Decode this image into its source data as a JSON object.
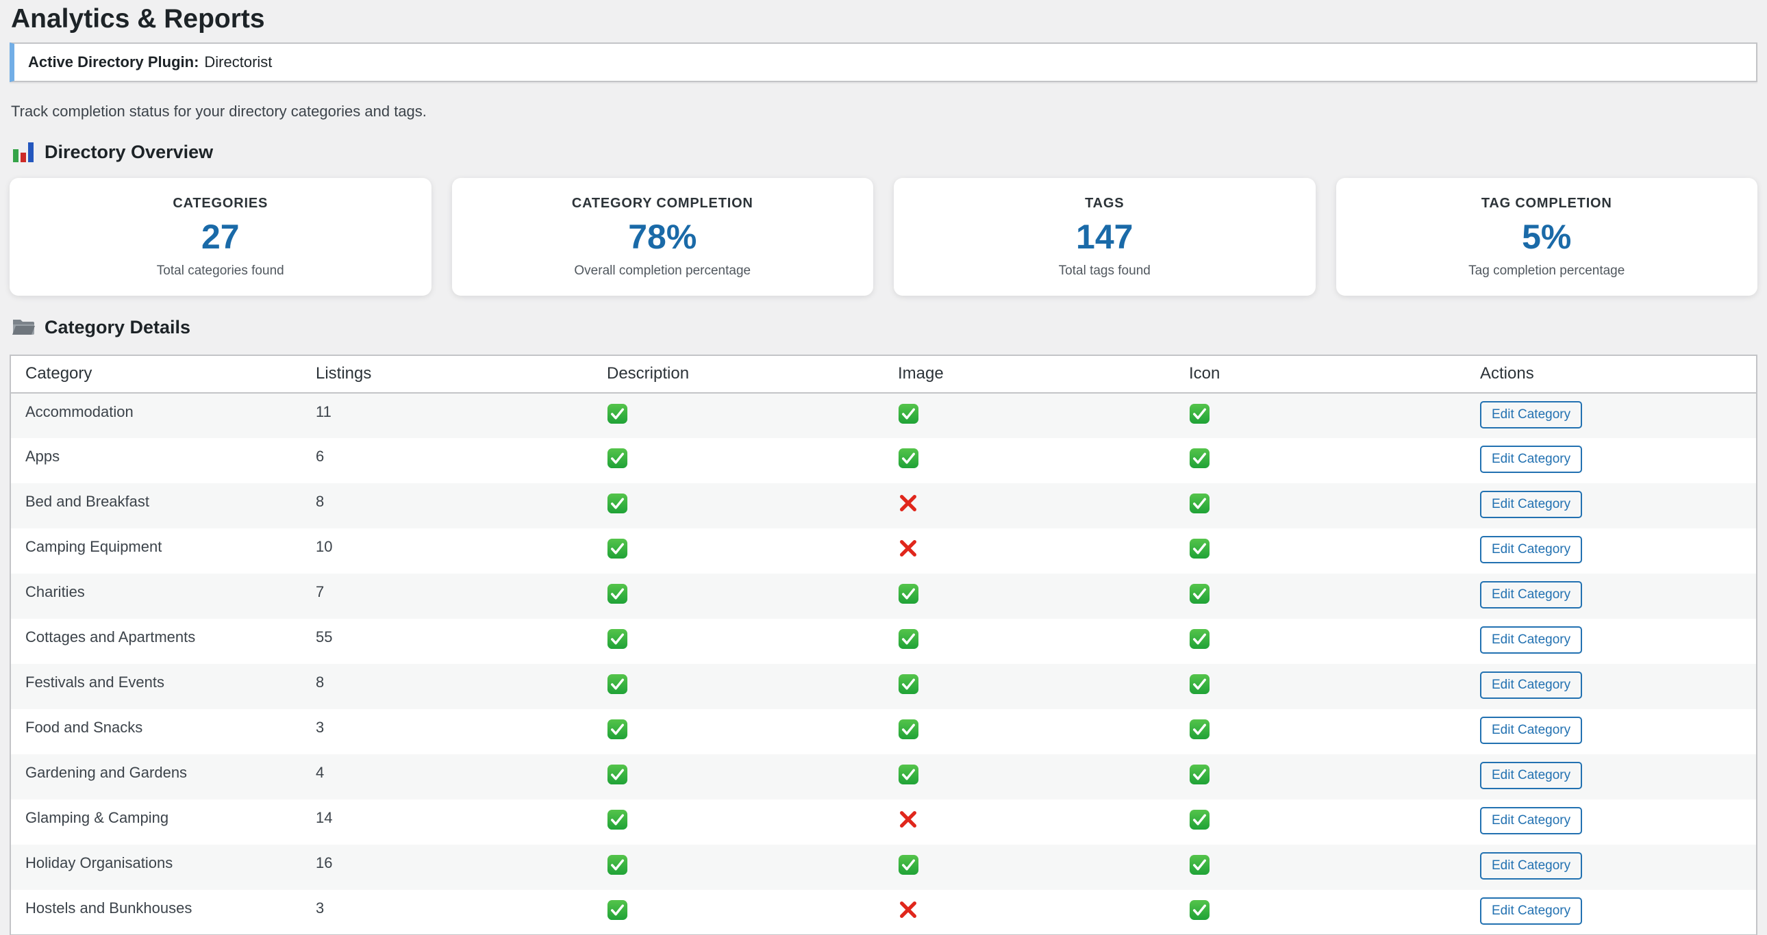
{
  "page": {
    "title": "Analytics & Reports",
    "description": "Track completion status for your directory categories and tags."
  },
  "notice": {
    "label": "Active Directory Plugin:",
    "value": "Directorist"
  },
  "overview": {
    "heading": "Directory Overview",
    "icon": "bar-chart-icon",
    "cards": [
      {
        "label": "CATEGORIES",
        "value": "27",
        "sublabel": "Total categories found"
      },
      {
        "label": "CATEGORY COMPLETION",
        "value": "78%",
        "sublabel": "Overall completion percentage"
      },
      {
        "label": "TAGS",
        "value": "147",
        "sublabel": "Total tags found"
      },
      {
        "label": "TAG COMPLETION",
        "value": "5%",
        "sublabel": "Tag completion percentage"
      }
    ]
  },
  "details": {
    "heading": "Category Details",
    "icon": "folder-icon",
    "table": {
      "columns": [
        "Category",
        "Listings",
        "Description",
        "Image",
        "Icon",
        "Actions"
      ],
      "action_label": "Edit Category",
      "status_icons": {
        "complete": "check-icon",
        "missing": "cross-icon"
      },
      "rows": [
        {
          "category": "Accommodation",
          "listings": "11",
          "description": "complete",
          "image": "complete",
          "icon": "complete"
        },
        {
          "category": "Apps",
          "listings": "6",
          "description": "complete",
          "image": "complete",
          "icon": "complete"
        },
        {
          "category": "Bed and Breakfast",
          "listings": "8",
          "description": "complete",
          "image": "missing",
          "icon": "complete"
        },
        {
          "category": "Camping Equipment",
          "listings": "10",
          "description": "complete",
          "image": "missing",
          "icon": "complete"
        },
        {
          "category": "Charities",
          "listings": "7",
          "description": "complete",
          "image": "complete",
          "icon": "complete"
        },
        {
          "category": "Cottages and Apartments",
          "listings": "55",
          "description": "complete",
          "image": "complete",
          "icon": "complete"
        },
        {
          "category": "Festivals and Events",
          "listings": "8",
          "description": "complete",
          "image": "complete",
          "icon": "complete"
        },
        {
          "category": "Food and Snacks",
          "listings": "3",
          "description": "complete",
          "image": "complete",
          "icon": "complete"
        },
        {
          "category": "Gardening and Gardens",
          "listings": "4",
          "description": "complete",
          "image": "complete",
          "icon": "complete"
        },
        {
          "category": "Glamping & Camping",
          "listings": "14",
          "description": "complete",
          "image": "missing",
          "icon": "complete"
        },
        {
          "category": "Holiday Organisations",
          "listings": "16",
          "description": "complete",
          "image": "complete",
          "icon": "complete"
        },
        {
          "category": "Hostels and Bunkhouses",
          "listings": "3",
          "description": "complete",
          "image": "missing",
          "icon": "complete"
        }
      ]
    }
  },
  "colors": {
    "stat_value_blue": "#1a6aa8",
    "button_blue": "#2271b1",
    "notice_accent_blue": "#72aee6",
    "check_green": "#2fae3d",
    "cross_red": "#e0271c",
    "page_background": "#f0f0f1",
    "stripe_gray": "#f6f7f7",
    "border_gray": "#c3c4c7"
  }
}
